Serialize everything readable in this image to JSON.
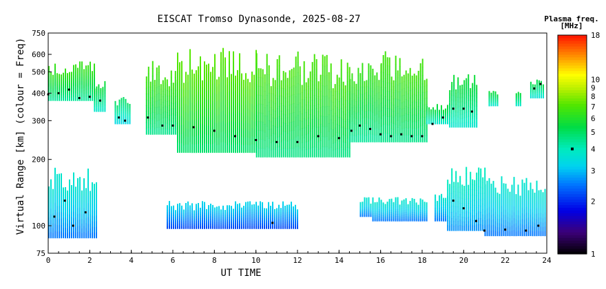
{
  "chart_data": {
    "type": "heatmap",
    "title": "EISCAT Tromso Dynasonde, 2025-08-27",
    "xlabel": "UT TIME",
    "ylabel": "Virtual Range [km] (colour = Freq)",
    "x_ticks": [
      "0",
      "2",
      "4",
      "6",
      "8",
      "10",
      "12",
      "14",
      "16",
      "18",
      "20",
      "22",
      "24"
    ],
    "y_ticks": [
      "75",
      "100",
      "200",
      "300",
      "400",
      "500",
      "600",
      "750"
    ],
    "x_range": [
      0,
      24
    ],
    "y_range": [
      75,
      750
    ],
    "y_scale": "log",
    "colorbar": {
      "title": "Plasma freq.",
      "unit": "[MHz]",
      "ticks": [
        "1",
        "2",
        "3",
        "4",
        "5",
        "6",
        "7",
        "8",
        "9",
        "10",
        "18"
      ],
      "range": [
        1,
        18
      ],
      "scale": "log"
    },
    "bands": [
      {
        "from": 0.0,
        "to": 2.2,
        "lower": 370,
        "upper": 560,
        "freq": 5.2
      },
      {
        "from": 2.2,
        "to": 2.7,
        "lower": 330,
        "upper": 460,
        "freq": 4.5
      },
      {
        "from": 3.2,
        "to": 3.9,
        "lower": 290,
        "upper": 390,
        "freq": 4.0
      },
      {
        "from": 4.7,
        "to": 6.2,
        "lower": 260,
        "upper": 560,
        "freq": 5.4
      },
      {
        "from": 6.2,
        "to": 10.0,
        "lower": 215,
        "upper": 660,
        "freq": 5.8
      },
      {
        "from": 10.0,
        "to": 14.5,
        "lower": 205,
        "upper": 620,
        "freq": 5.5
      },
      {
        "from": 14.5,
        "to": 16.0,
        "lower": 240,
        "upper": 560,
        "freq": 5.2
      },
      {
        "from": 16.0,
        "to": 18.2,
        "lower": 240,
        "upper": 620,
        "freq": 5.4
      },
      {
        "from": 18.2,
        "to": 19.3,
        "lower": 290,
        "upper": 360,
        "freq": 4.5
      },
      {
        "from": 19.3,
        "to": 20.6,
        "lower": 280,
        "upper": 500,
        "freq": 4.5
      },
      {
        "from": 21.2,
        "to": 21.6,
        "lower": 350,
        "upper": 410,
        "freq": 4.5
      },
      {
        "from": 22.5,
        "to": 22.7,
        "lower": 350,
        "upper": 410,
        "freq": 4.5
      },
      {
        "from": 23.2,
        "to": 23.8,
        "lower": 380,
        "upper": 470,
        "freq": 4.3
      },
      {
        "from": 0.0,
        "to": 2.3,
        "lower": 88,
        "upper": 185,
        "freq": 3.0
      },
      {
        "from": 5.7,
        "to": 12.0,
        "lower": 97,
        "upper": 130,
        "freq": 2.6
      },
      {
        "from": 15.0,
        "to": 15.6,
        "lower": 110,
        "upper": 135,
        "freq": 3.0
      },
      {
        "from": 15.6,
        "to": 18.2,
        "lower": 105,
        "upper": 135,
        "freq": 3.0
      },
      {
        "from": 18.6,
        "to": 19.2,
        "lower": 105,
        "upper": 140,
        "freq": 3.0
      },
      {
        "from": 19.2,
        "to": 21.0,
        "lower": 95,
        "upper": 190,
        "freq": 3.2
      },
      {
        "from": 21.0,
        "to": 23.9,
        "lower": 90,
        "upper": 170,
        "freq": 3.0
      }
    ],
    "peak_series": [
      {
        "x": 0.0,
        "y": 395
      },
      {
        "x": 0.5,
        "y": 400
      },
      {
        "x": 1.0,
        "y": 415
      },
      {
        "x": 1.5,
        "y": 380
      },
      {
        "x": 2.0,
        "y": 385
      },
      {
        "x": 2.5,
        "y": 370
      },
      {
        "x": 3.4,
        "y": 310
      },
      {
        "x": 3.7,
        "y": 300
      },
      {
        "x": 4.8,
        "y": 310
      },
      {
        "x": 5.5,
        "y": 285
      },
      {
        "x": 6.0,
        "y": 285
      },
      {
        "x": 7.0,
        "y": 280
      },
      {
        "x": 8.0,
        "y": 270
      },
      {
        "x": 9.0,
        "y": 255
      },
      {
        "x": 10.0,
        "y": 245
      },
      {
        "x": 11.0,
        "y": 240
      },
      {
        "x": 12.0,
        "y": 240
      },
      {
        "x": 13.0,
        "y": 255
      },
      {
        "x": 14.0,
        "y": 250
      },
      {
        "x": 14.6,
        "y": 270
      },
      {
        "x": 15.0,
        "y": 285
      },
      {
        "x": 15.5,
        "y": 275
      },
      {
        "x": 16.0,
        "y": 260
      },
      {
        "x": 16.5,
        "y": 255
      },
      {
        "x": 17.0,
        "y": 260
      },
      {
        "x": 17.5,
        "y": 255
      },
      {
        "x": 18.0,
        "y": 255
      },
      {
        "x": 18.5,
        "y": 290
      },
      {
        "x": 19.0,
        "y": 310
      },
      {
        "x": 19.5,
        "y": 340
      },
      {
        "x": 20.0,
        "y": 340
      },
      {
        "x": 20.4,
        "y": 330
      },
      {
        "x": 23.4,
        "y": 420
      },
      {
        "x": 23.7,
        "y": 440
      },
      {
        "x": 0.3,
        "y": 110
      },
      {
        "x": 0.8,
        "y": 130
      },
      {
        "x": 1.2,
        "y": 100
      },
      {
        "x": 1.8,
        "y": 115
      },
      {
        "x": 10.8,
        "y": 103
      },
      {
        "x": 19.5,
        "y": 130
      },
      {
        "x": 20.0,
        "y": 120
      },
      {
        "x": 20.6,
        "y": 105
      },
      {
        "x": 21.0,
        "y": 95
      },
      {
        "x": 22.0,
        "y": 96
      },
      {
        "x": 23.0,
        "y": 95
      },
      {
        "x": 23.6,
        "y": 100
      }
    ]
  }
}
